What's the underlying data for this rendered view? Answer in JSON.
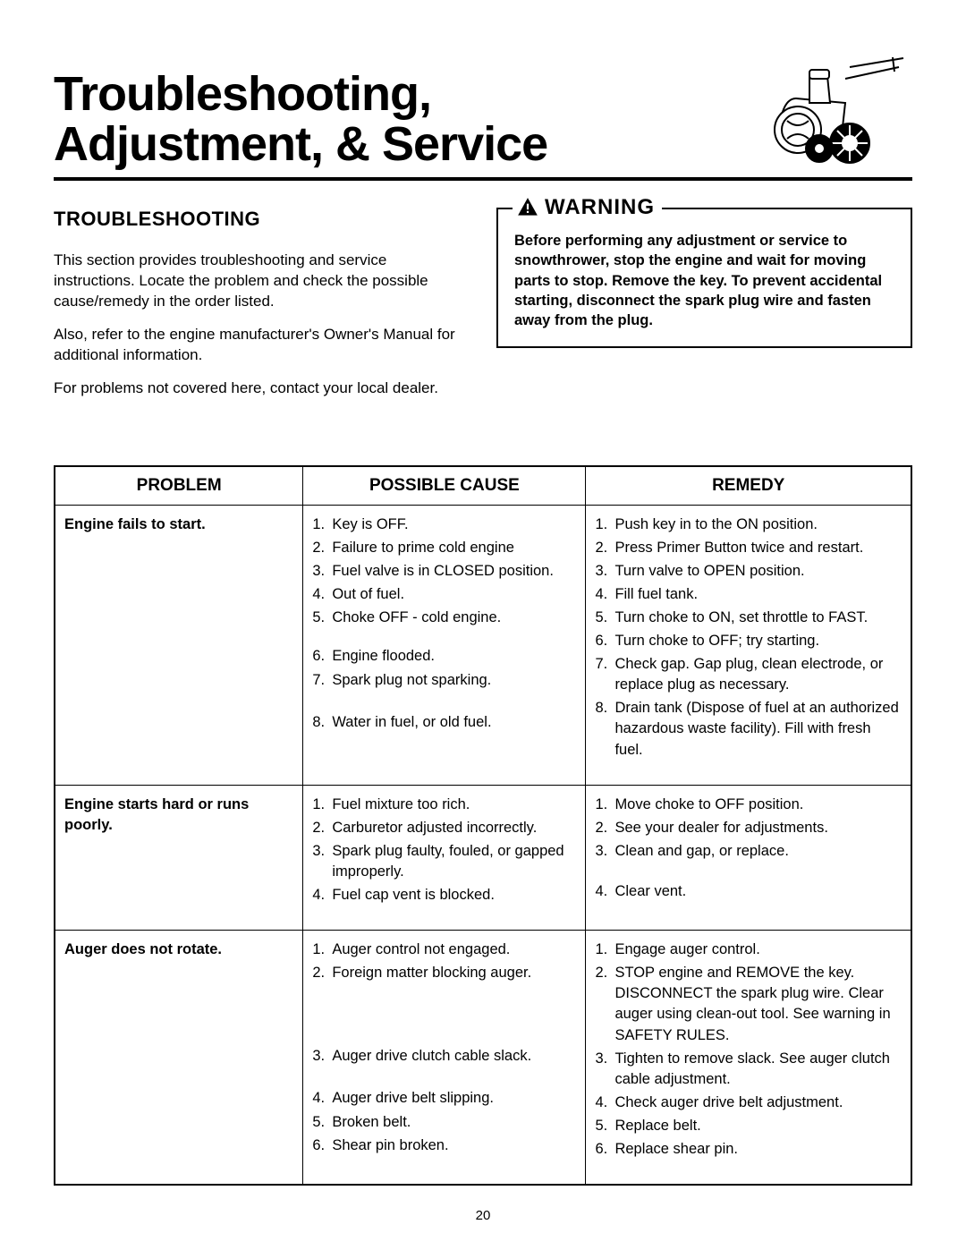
{
  "header": {
    "title_line1": "Troubleshooting,",
    "title_line2": "Adjustment, & Service"
  },
  "left": {
    "heading": "TROUBLESHOOTING",
    "para1": "This section provides troubleshooting and service instructions. Locate the problem and check the possible cause/remedy in the order listed.",
    "para2": "Also, refer to the engine manufacturer's Owner's Manual for additional information.",
    "para3": "For problems not covered here, contact your local dealer."
  },
  "warning": {
    "label": "WARNING",
    "text": "Before performing any adjustment or service to snowthrower, stop the engine and wait for moving parts to stop. Remove the key. To prevent accidental starting, disconnect the spark plug wire and fasten away from the plug."
  },
  "table": {
    "headers": {
      "problem": "PROBLEM",
      "cause": "POSSIBLE CAUSE",
      "remedy": "REMEDY"
    },
    "rows": [
      {
        "problem": "Engine fails to start.",
        "causes": [
          "Key is OFF.",
          "Failure to prime cold engine",
          "Fuel valve is in CLOSED position.",
          "Out of fuel.",
          "Choke OFF - cold engine.",
          "Engine flooded.",
          "Spark plug not sparking.",
          "Water in fuel, or old fuel."
        ],
        "remedies": [
          "Push key in to the ON position.",
          "Press Primer Button twice and restart.",
          "Turn valve to OPEN position.",
          "Fill fuel tank.",
          "Turn choke to ON, set throttle to FAST.",
          "Turn choke to OFF; try starting.",
          "Check gap. Gap plug, clean electrode, or replace plug as necessary.",
          "Drain tank (Dispose of fuel at an authorized hazardous waste facility). Fill with fresh fuel."
        ]
      },
      {
        "problem": "Engine starts hard or runs poorly.",
        "causes": [
          "Fuel mixture too rich.",
          "Carburetor adjusted incorrectly.",
          "Spark plug faulty, fouled, or gapped improperly.",
          "Fuel cap vent is blocked."
        ],
        "remedies": [
          "Move choke to OFF position.",
          "See your dealer for adjustments.",
          "Clean and gap, or replace.",
          "Clear vent."
        ]
      },
      {
        "problem": "Auger does not rotate.",
        "causes": [
          "Auger control not engaged.",
          "Foreign matter blocking auger.",
          "Auger drive clutch cable slack.",
          "Auger drive belt slipping.",
          "Broken belt.",
          "Shear pin broken."
        ],
        "remedies": [
          "Engage auger control.",
          "STOP engine and REMOVE the key. DISCONNECT the spark plug wire. Clear auger using clean-out tool. See warning in SAFETY RULES.",
          "Tighten to remove slack. See auger clutch cable adjustment.",
          "Check auger drive belt adjustment.",
          "Replace belt.",
          "Replace shear pin."
        ]
      }
    ]
  },
  "page_number": "20",
  "colors": {
    "text": "#000000",
    "background": "#ffffff",
    "border": "#000000"
  }
}
